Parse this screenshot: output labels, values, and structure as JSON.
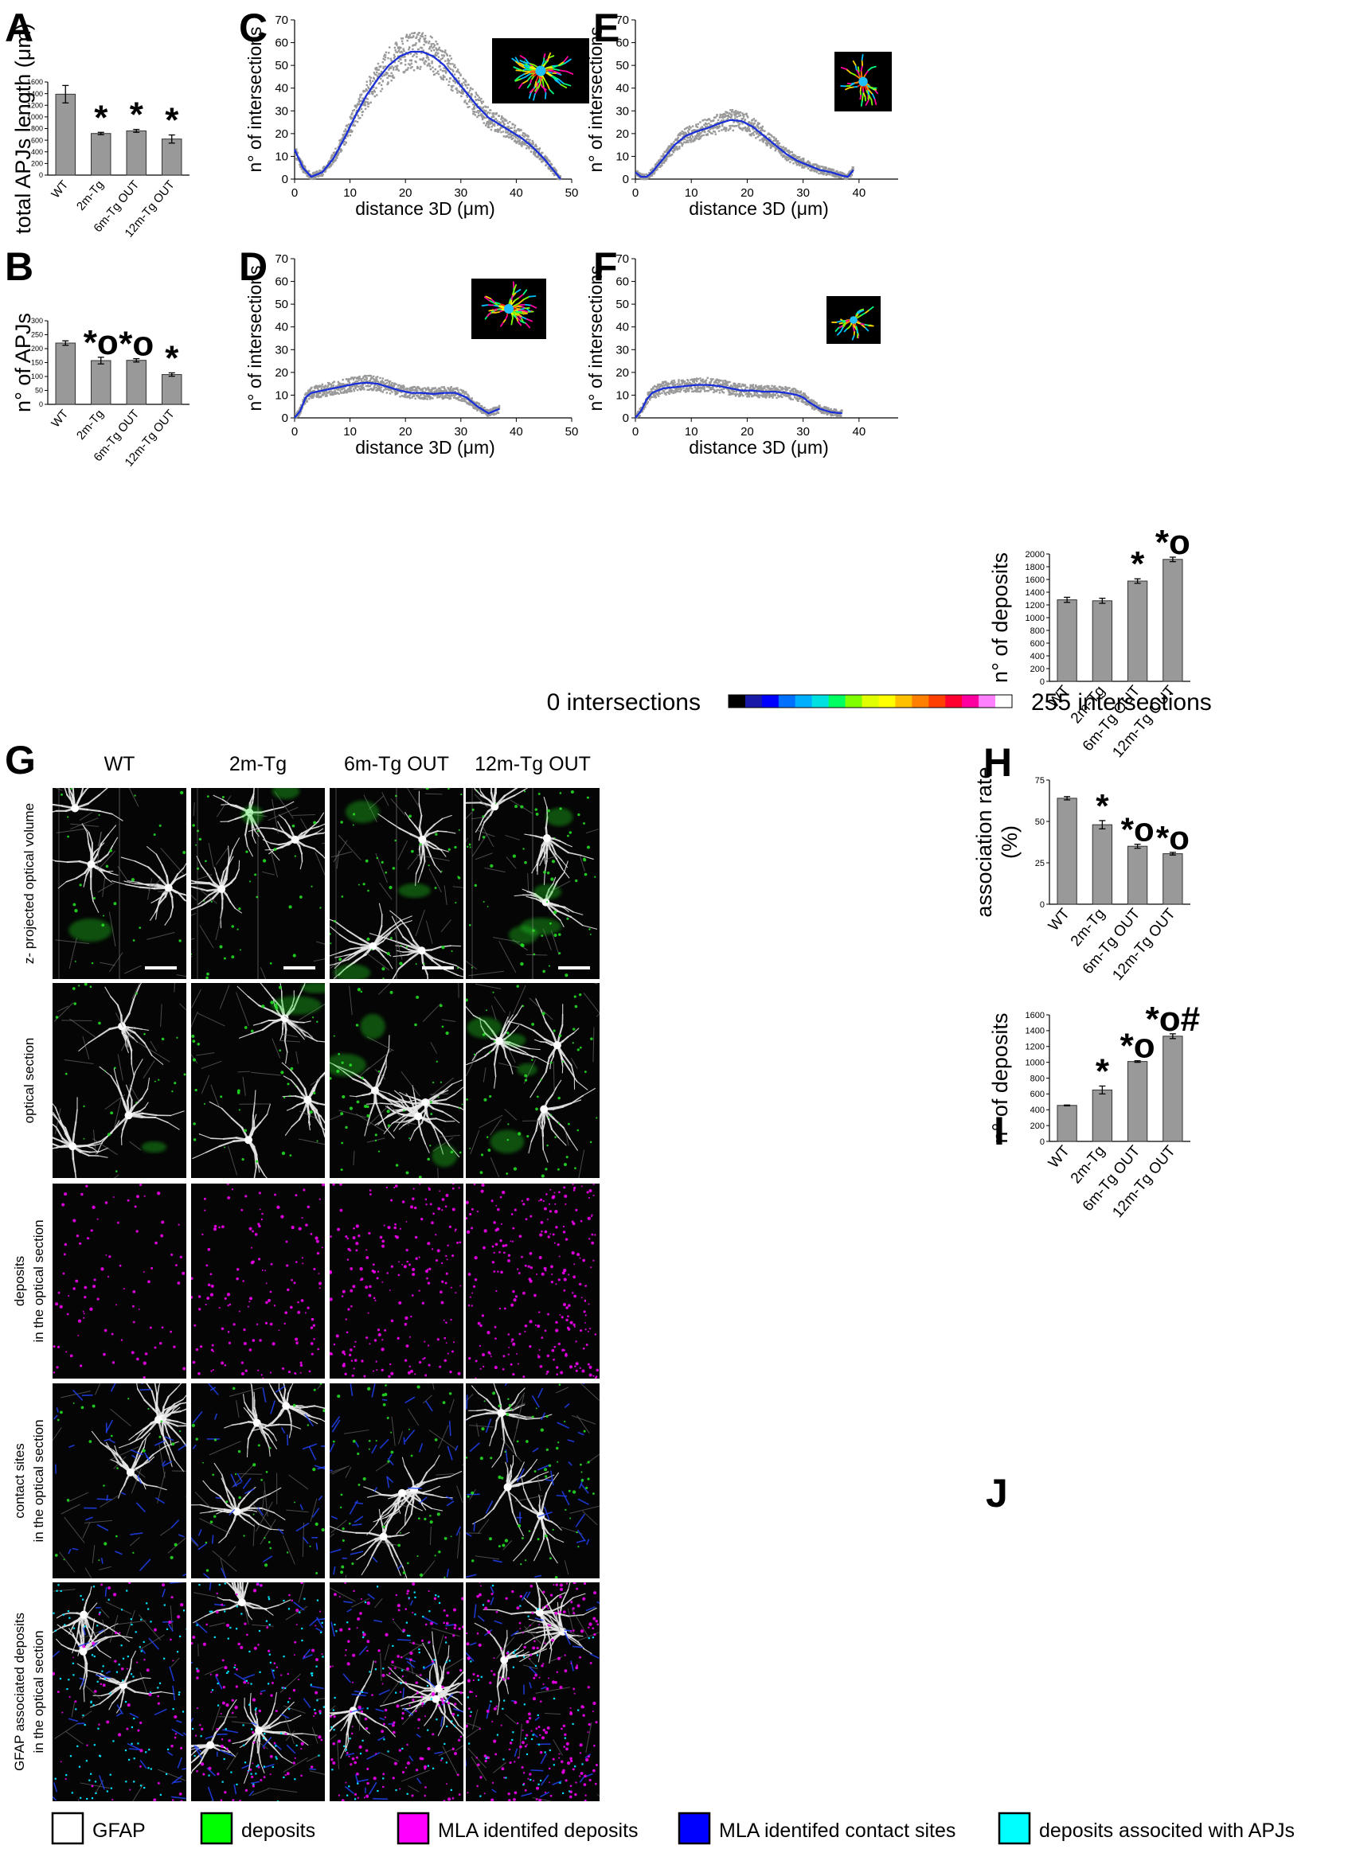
{
  "figure": {
    "colorbar": {
      "left_label": "0 intersections",
      "right_label": "255 intersections",
      "colors": [
        "#000000",
        "#1a1aa8",
        "#0000ff",
        "#0070ff",
        "#00b0ff",
        "#00e0e0",
        "#00ff60",
        "#80ff00",
        "#e0ff00",
        "#ffff00",
        "#ffc000",
        "#ff8000",
        "#ff4000",
        "#ff0030",
        "#ff00a0",
        "#ff80ff",
        "#ffffff"
      ]
    },
    "microscopy": {
      "panel_letter": "G",
      "columns": [
        "WT",
        "2m-Tg",
        "6m-Tg OUT",
        "12m-Tg OUT"
      ],
      "rows": [
        {
          "lines": [
            "z- projected optical volume"
          ]
        },
        {
          "lines": [
            "optical section"
          ]
        },
        {
          "lines": [
            "deposits",
            "in the optical section"
          ]
        },
        {
          "lines": [
            "contact sites",
            "in the optical section"
          ]
        },
        {
          "lines": [
            "GFAP associated deposits",
            "in the optical section"
          ]
        }
      ],
      "colors": {
        "gfap": "#ffffff",
        "deposits": "#22dd22",
        "mla_deposits": "#ee00ee",
        "contact": "#2244ff",
        "associated": "#00e5ff"
      }
    },
    "legend": [
      {
        "label": "GFAP",
        "color": "#ffffff"
      },
      {
        "label": "deposits",
        "color": "#00ff00"
      },
      {
        "label": "MLA identifed deposits",
        "color": "#ff00ff"
      },
      {
        "label": "MLA identifed contact sites",
        "color": "#0000ff"
      },
      {
        "label": "deposits associted with APJs",
        "color": "#00ffff"
      }
    ]
  },
  "chart_data": [
    {
      "id": "A",
      "type": "bar",
      "ylabel": "total APJs length (μm)",
      "categories": [
        "WT",
        "2m-Tg",
        "6m-Tg OUT",
        "12m-Tg OUT"
      ],
      "values": [
        1390,
        715,
        760,
        620
      ],
      "errors": [
        150,
        20,
        25,
        70
      ],
      "ylim": [
        0,
        1600
      ],
      "yticks": [
        0,
        200,
        400,
        600,
        800,
        1000,
        1200,
        1400,
        1600
      ],
      "annotations": [
        "",
        "*",
        "*",
        "*"
      ],
      "bar_color": "#999999"
    },
    {
      "id": "B",
      "type": "bar",
      "ylabel": "n° of APJs",
      "categories": [
        "WT",
        "2m-Tg",
        "6m-Tg OUT",
        "12m-Tg OUT"
      ],
      "values": [
        220,
        157,
        158,
        107
      ],
      "errors": [
        8,
        12,
        6,
        6
      ],
      "ylim": [
        0,
        300
      ],
      "yticks": [
        0,
        50,
        100,
        150,
        200,
        250,
        300
      ],
      "annotations": [
        "",
        "*o",
        "*o",
        "*"
      ],
      "bar_color": "#999999"
    },
    {
      "id": "C",
      "type": "scatter",
      "xlabel": "distance 3D (μm)",
      "ylabel": "n° of intersections",
      "xlim": [
        0,
        50
      ],
      "ylim": [
        0,
        70
      ],
      "xticks": [
        0,
        10,
        20,
        30,
        40,
        50
      ],
      "yticks": [
        0,
        10,
        20,
        30,
        40,
        50,
        60,
        70
      ],
      "fit": [
        [
          0,
          13
        ],
        [
          1.5,
          5
        ],
        [
          3,
          1
        ],
        [
          5,
          3
        ],
        [
          7,
          9
        ],
        [
          9,
          18
        ],
        [
          11,
          28
        ],
        [
          13,
          37
        ],
        [
          15,
          44
        ],
        [
          17,
          50
        ],
        [
          19,
          54
        ],
        [
          21,
          56
        ],
        [
          23,
          56
        ],
        [
          25,
          54
        ],
        [
          27,
          50
        ],
        [
          29,
          44
        ],
        [
          31,
          38
        ],
        [
          33,
          32
        ],
        [
          35,
          27
        ],
        [
          37,
          24
        ],
        [
          39,
          21
        ],
        [
          41,
          18
        ],
        [
          43,
          14
        ],
        [
          45,
          9
        ],
        [
          47,
          3
        ],
        [
          48,
          0
        ]
      ]
    },
    {
      "id": "D",
      "type": "scatter",
      "xlabel": "distance 3D (μm)",
      "ylabel": "n° of intersections",
      "xlim": [
        0,
        50
      ],
      "ylim": [
        0,
        70
      ],
      "xticks": [
        0,
        10,
        20,
        30,
        40,
        50
      ],
      "yticks": [
        0,
        10,
        20,
        30,
        40,
        50,
        60,
        70
      ],
      "fit": [
        [
          0,
          0
        ],
        [
          1,
          3
        ],
        [
          2,
          9
        ],
        [
          3,
          11
        ],
        [
          5,
          12
        ],
        [
          7,
          13
        ],
        [
          9,
          14
        ],
        [
          11,
          15
        ],
        [
          13,
          15.5
        ],
        [
          15,
          15
        ],
        [
          17,
          13.5
        ],
        [
          19,
          12
        ],
        [
          21,
          11
        ],
        [
          23,
          11
        ],
        [
          25,
          10.5
        ],
        [
          27,
          11
        ],
        [
          29,
          11
        ],
        [
          31,
          9
        ],
        [
          33,
          5
        ],
        [
          35,
          2
        ],
        [
          36,
          3
        ],
        [
          37,
          4
        ]
      ]
    },
    {
      "id": "E",
      "type": "scatter",
      "xlabel": "distance 3D (μm)",
      "ylabel": "n° of intersections",
      "xlim": [
        0,
        47
      ],
      "ylim": [
        0,
        70
      ],
      "xticks": [
        0,
        10,
        20,
        30,
        40
      ],
      "yticks": [
        0,
        10,
        20,
        30,
        40,
        50,
        60,
        70
      ],
      "fit": [
        [
          0,
          3
        ],
        [
          1,
          1
        ],
        [
          2,
          1
        ],
        [
          3,
          3
        ],
        [
          5,
          9
        ],
        [
          7,
          15
        ],
        [
          9,
          19
        ],
        [
          11,
          21
        ],
        [
          13,
          22.5
        ],
        [
          15,
          24.5
        ],
        [
          17,
          26
        ],
        [
          19,
          25.5
        ],
        [
          21,
          23
        ],
        [
          23,
          19
        ],
        [
          25,
          15
        ],
        [
          27,
          11
        ],
        [
          29,
          8
        ],
        [
          31,
          6
        ],
        [
          33,
          4
        ],
        [
          35,
          3
        ],
        [
          37,
          1.5
        ],
        [
          38,
          1
        ],
        [
          39,
          4
        ]
      ]
    },
    {
      "id": "F",
      "type": "scatter",
      "xlabel": "distance 3D (μm)",
      "ylabel": "n° of intersections",
      "xlim": [
        0,
        47
      ],
      "ylim": [
        0,
        70
      ],
      "xticks": [
        0,
        10,
        20,
        30,
        40
      ],
      "yticks": [
        0,
        10,
        20,
        30,
        40,
        50,
        60,
        70
      ],
      "fit": [
        [
          0,
          0
        ],
        [
          1,
          3
        ],
        [
          2,
          8
        ],
        [
          3,
          11
        ],
        [
          5,
          13
        ],
        [
          7,
          13.5
        ],
        [
          9,
          14
        ],
        [
          11,
          14.5
        ],
        [
          13,
          14.5
        ],
        [
          15,
          14
        ],
        [
          17,
          13
        ],
        [
          19,
          12
        ],
        [
          21,
          12
        ],
        [
          23,
          11.5
        ],
        [
          25,
          11.5
        ],
        [
          27,
          11
        ],
        [
          29,
          10
        ],
        [
          30,
          9
        ],
        [
          31,
          7
        ],
        [
          33,
          4
        ],
        [
          35,
          2.5
        ],
        [
          37,
          2
        ]
      ]
    },
    {
      "id": "H",
      "type": "bar",
      "ylabel": "n° of deposits",
      "categories": [
        "WT",
        "2m-Tg",
        "6m-Tg OUT",
        "12m-Tg OUT"
      ],
      "values": [
        1280,
        1265,
        1575,
        1915
      ],
      "errors": [
        40,
        40,
        35,
        35
      ],
      "ylim": [
        0,
        2000
      ],
      "yticks": [
        0,
        200,
        400,
        600,
        800,
        1000,
        1200,
        1400,
        1600,
        1800,
        2000
      ],
      "annotations": [
        "",
        "",
        "*",
        "*o"
      ],
      "bar_color": "#999999"
    },
    {
      "id": "I",
      "type": "bar",
      "ylabel_lines": [
        "association rate",
        "(%)"
      ],
      "categories": [
        "WT",
        "2m-Tg",
        "6m-Tg OUT",
        "12m-Tg OUT"
      ],
      "values": [
        64,
        48,
        35,
        30.5
      ],
      "errors": [
        1,
        2.5,
        1.2,
        0.8
      ],
      "ylim": [
        0,
        75
      ],
      "yticks": [
        0,
        25,
        50,
        75
      ],
      "annotations": [
        "",
        "*",
        "*o",
        "*o"
      ],
      "bar_color": "#999999"
    },
    {
      "id": "J",
      "type": "bar",
      "ylabel": "n° of deposits",
      "categories": [
        "WT",
        "2m-Tg",
        "6m-Tg OUT",
        "12m-Tg OUT"
      ],
      "values": [
        455,
        650,
        1010,
        1330
      ],
      "errors": [
        5,
        50,
        10,
        30
      ],
      "ylim": [
        0,
        1600
      ],
      "yticks": [
        0,
        200,
        400,
        600,
        800,
        1000,
        1200,
        1400,
        1600
      ],
      "annotations": [
        "",
        "*",
        "*o",
        "*o#"
      ],
      "bar_color": "#999999"
    }
  ]
}
